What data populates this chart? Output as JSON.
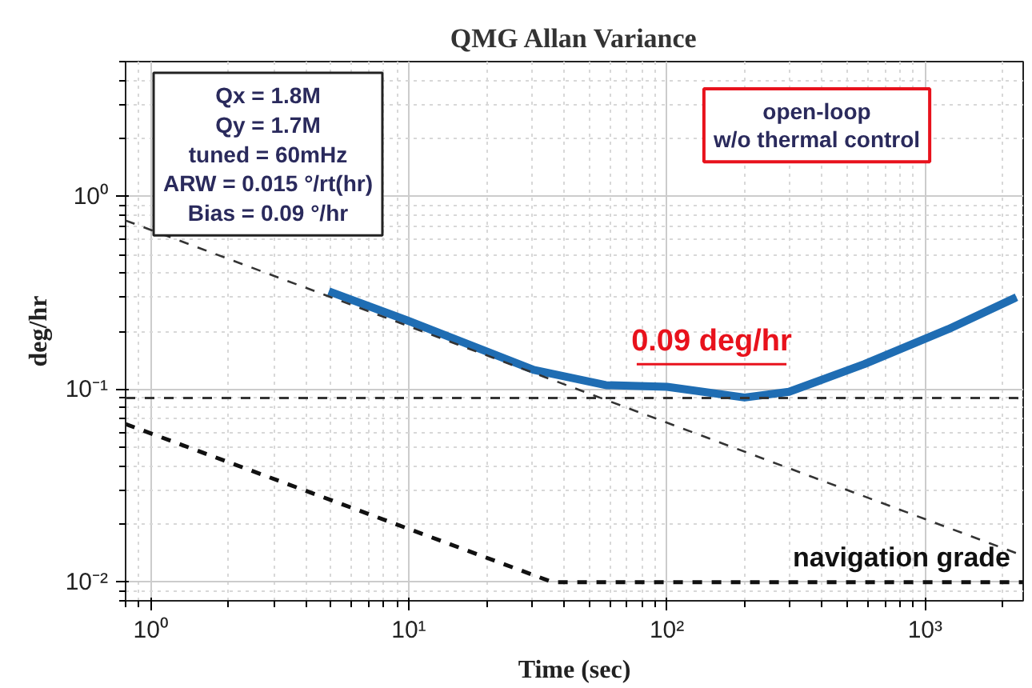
{
  "chart_data": {
    "type": "line",
    "title": "QMG Allan Variance",
    "xlabel": "Time (sec)",
    "ylabel": "deg/hr",
    "log": "xy",
    "grid": true,
    "xlim": [
      0.8,
      2400
    ],
    "ylim": [
      0.008,
      5
    ],
    "xticks": [
      {
        "value": 1,
        "label": "10⁰"
      },
      {
        "value": 10,
        "label": "10¹"
      },
      {
        "value": 100,
        "label": "10²"
      },
      {
        "value": 1000,
        "label": "10³"
      }
    ],
    "yticks": [
      {
        "value": 0.01,
        "label": "10⁻²"
      },
      {
        "value": 0.1,
        "label": "10⁻¹"
      },
      {
        "value": 1,
        "label": "10⁰"
      }
    ],
    "series": [
      {
        "color": "#1f6db3",
        "x": [
          4.9,
          9.9,
          30.5,
          58,
          100,
          200,
          297,
          582,
          1230,
          2260
        ],
        "values": [
          0.322,
          0.227,
          0.126,
          0.105,
          0.103,
          0.0906,
          0.097,
          0.135,
          0.205,
          0.3
        ],
        "line_style": "solid"
      },
      {
        "color": "#333333",
        "x": [
          0.8,
          2400
        ],
        "values": [
          0.75,
          0.0137
        ],
        "line_style": "dashed"
      },
      {
        "name": "navigation grade",
        "color": "#111111",
        "x": [
          0.8,
          36,
          2400
        ],
        "values": [
          0.066,
          0.01,
          0.01
        ],
        "line_style": "dashed"
      }
    ],
    "ref_lines": [
      {
        "axis": "y",
        "value": 0.09,
        "label": "0.09 deg/hr",
        "line_style": "dashed"
      }
    ],
    "annotations": [
      "Qx = 1.8M\nQy = 1.7M\ntuned = 60mHz\nARW = 0.015 °/rt(hr)\nBias = 0.09 °/hr",
      "open-loop\nw/o thermal control"
    ]
  }
}
